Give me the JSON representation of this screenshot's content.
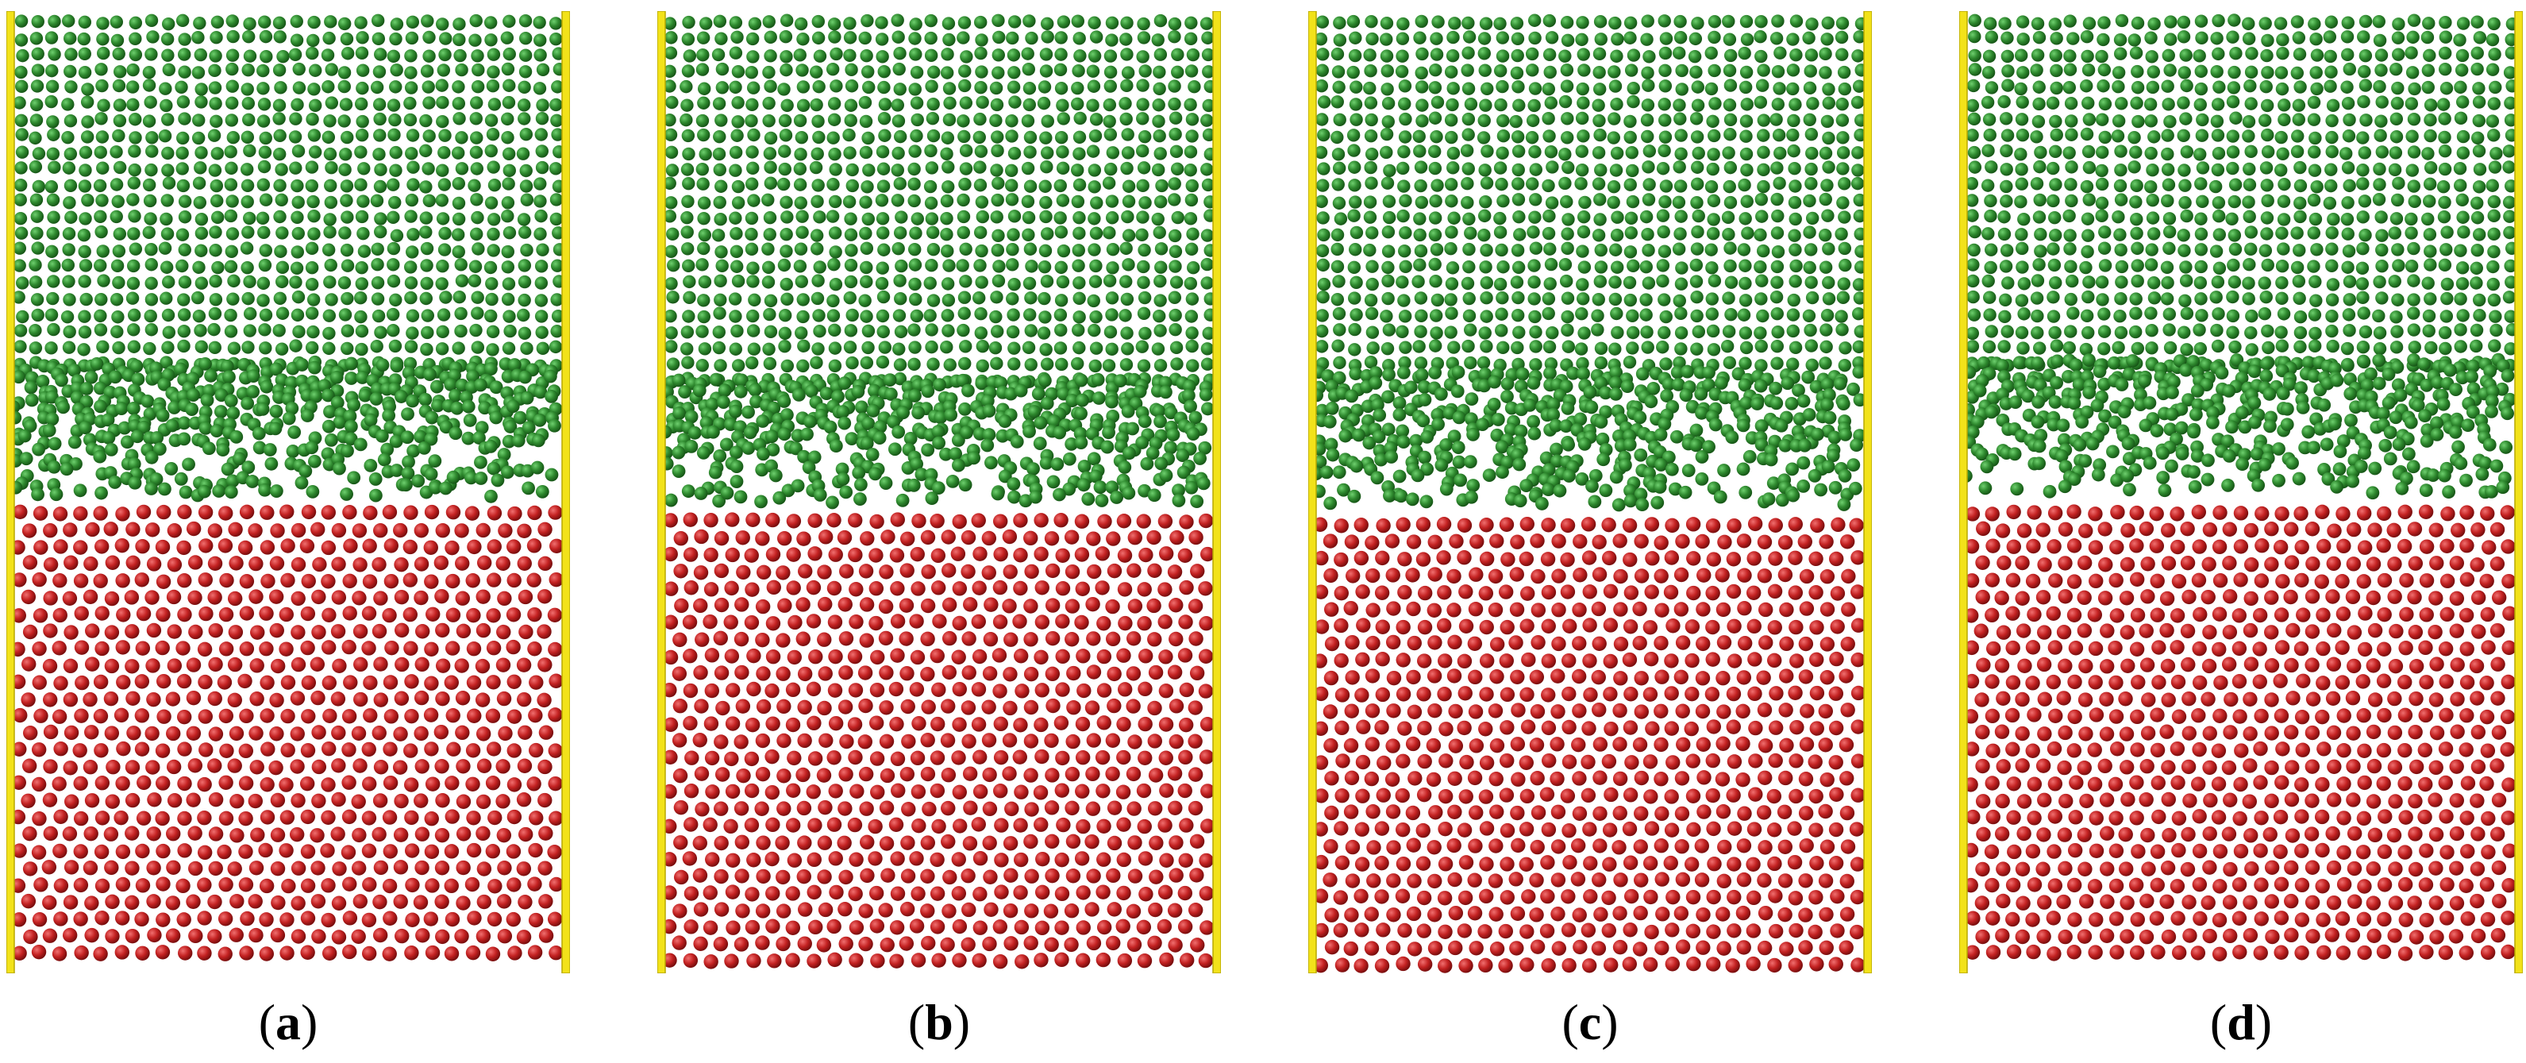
{
  "panels": [
    {
      "label": "a"
    },
    {
      "label": "b"
    },
    {
      "label": "c"
    },
    {
      "label": "d"
    }
  ],
  "colors": {
    "wall": "#f2e21a",
    "wall_edge": "#b8a800",
    "upper_atoms": "#2f8a2f",
    "upper_atoms_dark": "#175717",
    "lower_atoms": "#c42222",
    "lower_atoms_dark": "#7a0e0e"
  }
}
